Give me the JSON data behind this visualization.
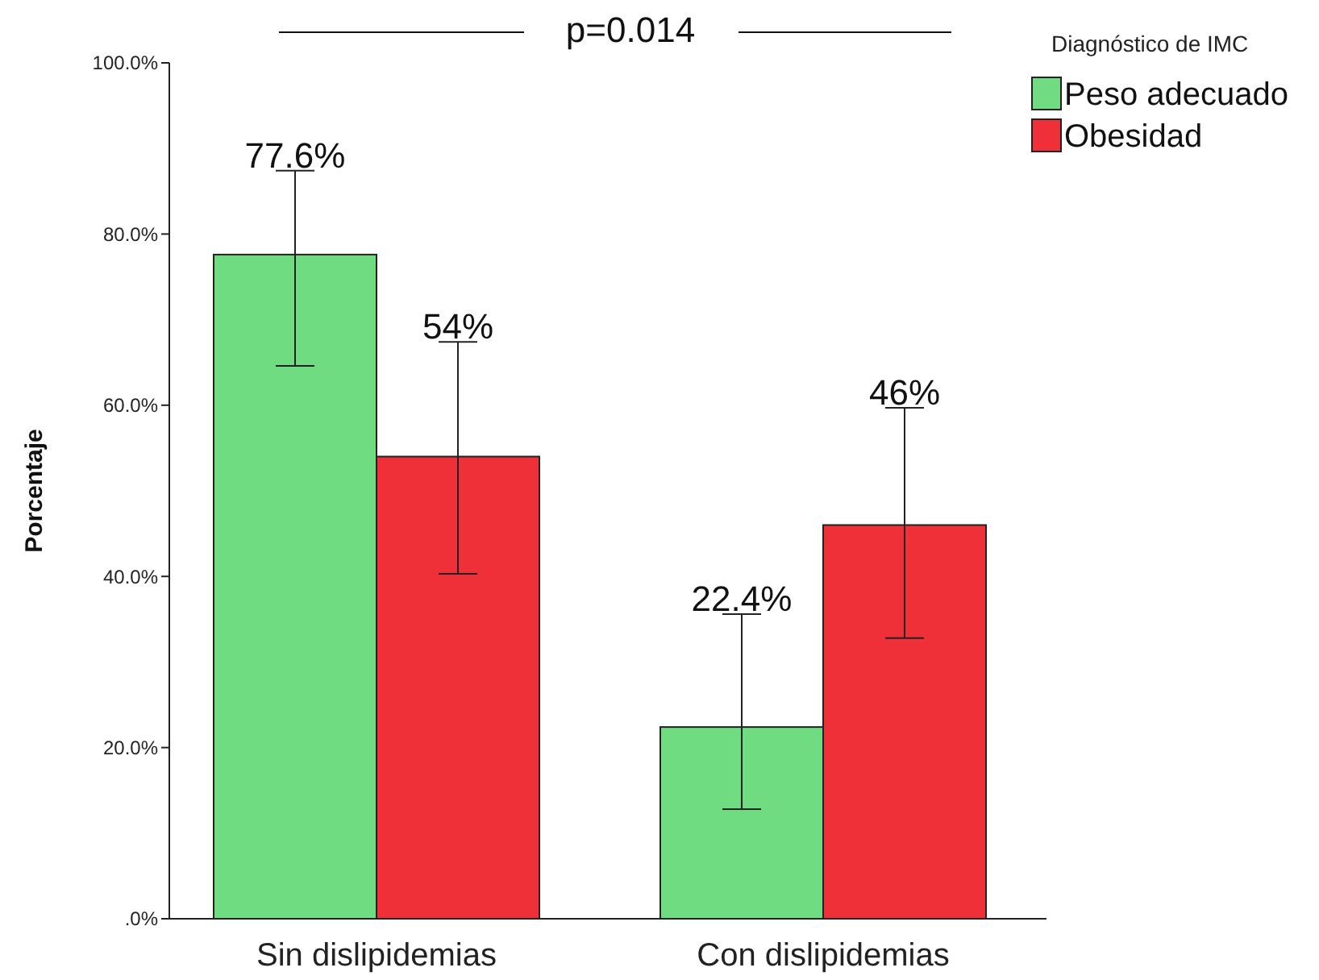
{
  "chart_data": {
    "type": "bar",
    "ylabel": "Porcentaje",
    "legend_title": "Diagnóstico de IMC",
    "legend": "top right",
    "grid": false,
    "categories": [
      "Sin dislipidemias",
      "Con dislipidemias"
    ],
    "series": [
      {
        "name": "Peso adecuado",
        "color": "#6fdc82",
        "values": [
          77.6,
          22.4
        ],
        "errors": [
          [
            64.6,
            87.4
          ],
          [
            12.8,
            35.6
          ]
        ],
        "value_labels": [
          "77.6%",
          "22.4%"
        ]
      },
      {
        "name": "Obesidad",
        "color": "#ef3038",
        "values": [
          54,
          46
        ],
        "errors": [
          [
            40.3,
            67.4
          ],
          [
            32.8,
            59.7
          ]
        ],
        "value_labels": [
          "54%",
          "46%"
        ]
      }
    ],
    "ylim": [
      0,
      100
    ],
    "yticks": [
      {
        "value": 0,
        "label": ".0%"
      },
      {
        "value": 20,
        "label": "20.0%"
      },
      {
        "value": 40,
        "label": "40.0%"
      },
      {
        "value": 60,
        "label": "60.0%"
      },
      {
        "value": 80,
        "label": "80.0%"
      },
      {
        "value": 100,
        "label": "100.0%"
      }
    ],
    "annotations": [
      "p=0.014"
    ]
  }
}
